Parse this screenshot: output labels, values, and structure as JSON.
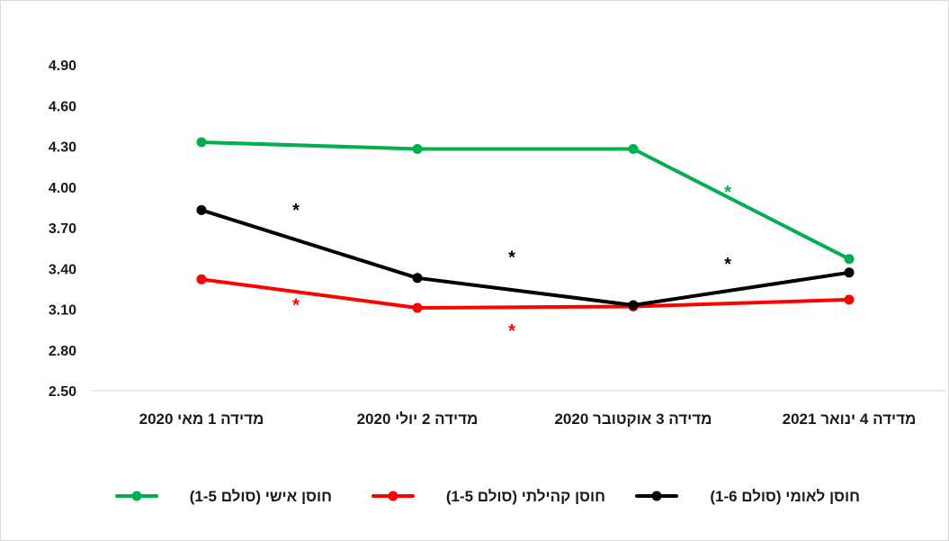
{
  "chart_data": {
    "type": "line",
    "categories": [
      "מדידה 1 מאי 2020",
      "מדידה 2 יולי 2020",
      "מדידה 3 אוקטובר 2020",
      "מדידה 4 ינואר 2021"
    ],
    "ylim": [
      2.5,
      4.9
    ],
    "yticks": [
      "2.50",
      "2.80",
      "3.10",
      "3.40",
      "3.70",
      "4.00",
      "4.30",
      "4.60",
      "4.90"
    ],
    "series": [
      {
        "name": "חוסן אישי (סולם 1-5)",
        "color": "#00b050",
        "values": [
          4.33,
          4.28,
          4.28,
          3.47
        ]
      },
      {
        "name": "חוסן קהילתי (סולם 1-5)",
        "color": "#ff0000",
        "values": [
          3.32,
          3.11,
          3.12,
          3.17
        ]
      },
      {
        "name": "חוסן לאומי (סולם 1-6)",
        "color": "#000000",
        "values": [
          3.83,
          3.33,
          3.13,
          3.37
        ]
      }
    ],
    "annotations": [
      {
        "text": "*",
        "color": "#000000",
        "between": [
          0,
          1
        ],
        "y": 3.88
      },
      {
        "text": "*",
        "color": "#ff0000",
        "between": [
          0,
          1
        ],
        "y": 3.18
      },
      {
        "text": "*",
        "color": "#000000",
        "between": [
          1,
          2
        ],
        "y": 3.53
      },
      {
        "text": "*",
        "color": "#ff0000",
        "between": [
          1,
          2
        ],
        "y": 2.99
      },
      {
        "text": "*",
        "color": "#00b050",
        "between": [
          2,
          3
        ],
        "y": 4.01
      },
      {
        "text": "*",
        "color": "#000000",
        "between": [
          2,
          3
        ],
        "y": 3.48
      }
    ],
    "legend_position": "bottom",
    "grid": false
  }
}
